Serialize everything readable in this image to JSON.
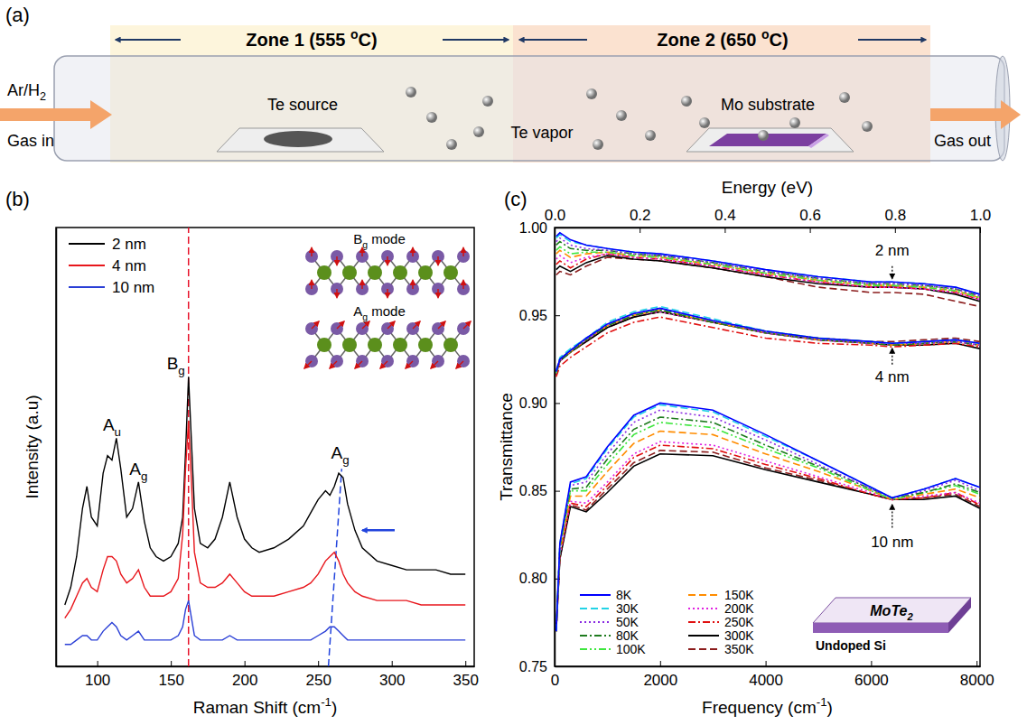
{
  "diagram": {
    "panel_label": "(a)",
    "zones": [
      {
        "label": [
          "Zone 1 (555 ",
          {
            "sup": "o"
          },
          "C)"
        ]
      },
      {
        "label": [
          "Zone 2 (650 ",
          {
            "sup": "o"
          },
          "C)"
        ]
      }
    ],
    "gas_in": [
      "Ar/H",
      {
        "sub": "2"
      }
    ],
    "gas_in_label": "Gas in",
    "source": "Te source",
    "vapor": "Te vapor",
    "substrate": "Mo substrate",
    "gas_out": "Gas out"
  },
  "chart_data": [
    {
      "type": "line",
      "panel_label": "(b)",
      "x_label": [
        "Raman Shift (cm",
        {
          "sup": "-1"
        },
        ")"
      ],
      "y_label": "Intensity (a.u)",
      "xlim": [
        72,
        356
      ],
      "xticks": [
        100,
        150,
        200,
        250,
        300,
        350
      ],
      "ylim": [
        0,
        100
      ],
      "tick_labels": "x",
      "grid": false,
      "legend": "upper left",
      "x": [
        78,
        82,
        86,
        90,
        93,
        96,
        100,
        104,
        107,
        110,
        113,
        116,
        120,
        124,
        128,
        132,
        136,
        140,
        145,
        150,
        155,
        158,
        160,
        162,
        164,
        166,
        170,
        175,
        180,
        185,
        190,
        195,
        200,
        205,
        210,
        220,
        230,
        240,
        245,
        250,
        255,
        258,
        261,
        264,
        267,
        270,
        275,
        280,
        290,
        300,
        310,
        320,
        330,
        340,
        350
      ],
      "series": [
        {
          "name": "2 nm",
          "color": "#000000",
          "values": [
            14,
            18,
            25,
            36,
            41,
            34,
            32,
            44,
            48,
            47,
            52,
            45,
            34,
            36,
            42,
            33,
            27,
            25,
            24,
            25,
            28,
            34,
            49,
            66,
            51,
            36,
            28,
            27,
            29,
            34,
            42,
            34,
            29,
            27,
            26,
            27,
            29,
            32,
            35,
            38,
            40,
            39,
            41,
            44,
            43,
            37,
            31,
            27,
            24,
            23,
            22,
            22,
            22,
            21,
            21
          ]
        },
        {
          "name": "4 nm",
          "color": "#e8161c",
          "values": [
            11,
            13,
            16,
            19,
            20,
            18,
            17,
            22,
            25,
            25,
            24,
            21,
            19,
            20,
            22,
            18,
            16,
            16,
            16,
            17,
            20,
            30,
            45,
            56,
            42,
            26,
            19,
            18,
            18,
            19,
            21,
            19,
            17,
            16,
            16,
            16,
            17,
            18,
            19,
            21,
            24,
            25,
            26,
            24,
            21,
            19,
            17,
            16,
            15,
            15,
            15,
            14,
            14,
            14,
            14
          ]
        },
        {
          "name": "10 nm",
          "color": "#2a3fd6",
          "values": [
            5,
            5,
            6,
            7,
            7,
            6,
            6,
            8,
            9,
            10,
            9,
            7,
            6,
            7,
            8,
            6,
            6,
            6,
            6,
            6,
            7,
            9,
            13,
            15,
            11,
            7,
            6,
            6,
            6,
            6,
            7,
            6,
            6,
            6,
            6,
            6,
            6,
            6,
            6,
            7,
            8,
            9,
            9,
            8,
            7,
            6,
            6,
            6,
            6,
            6,
            6,
            6,
            6,
            6,
            6
          ]
        }
      ],
      "peak_labels": [
        {
          "text": [
            "A",
            {
              "sub": "u"
            }
          ],
          "x": 110
        },
        {
          "text": [
            "A",
            {
              "sub": "g"
            }
          ],
          "x": 128
        },
        {
          "text": [
            "B",
            {
              "sub": "g"
            }
          ],
          "x": 162
        },
        {
          "text": [
            "A",
            {
              "sub": "g"
            }
          ],
          "x": 265
        }
      ],
      "reference_lines": [
        {
          "x": [
            162,
            162
          ],
          "y": [
            0,
            100
          ],
          "color": "#e8132b",
          "line_style": "dashed"
        },
        {
          "x": [
            257,
            266
          ],
          "y": [
            0,
            45
          ],
          "color": "#2244dd",
          "line_style": "dashed"
        }
      ],
      "arrow": {
        "x": [
          302,
          280
        ],
        "y": [
          31,
          31
        ],
        "color": "#2244dd"
      },
      "insets": [
        [
          "B",
          {
            "sub": "g"
          },
          " mode"
        ],
        [
          "A",
          {
            "sub": "g"
          },
          " mode"
        ]
      ]
    },
    {
      "type": "line",
      "panel_label": "(c)",
      "x_label": [
        "Frequency (cm",
        {
          "sup": "-1"
        },
        ")"
      ],
      "x2_label": "Energy (eV)",
      "y_label": "Transmittance",
      "xlim": [
        0,
        8065
      ],
      "xticks": [
        0,
        2000,
        4000,
        6000,
        8000
      ],
      "x2lim": [
        0,
        1
      ],
      "x2ticks": [
        {
          "value": 0,
          "label": "0.0"
        },
        0.2,
        0.4,
        0.6,
        0.8,
        {
          "value": 1,
          "label": "1.0"
        }
      ],
      "ylim": [
        0.75,
        1
      ],
      "yticks": [
        0.75,
        {
          "value": 0.8,
          "label": "0.80"
        },
        0.85,
        {
          "value": 0.9,
          "label": "0.90"
        },
        0.95,
        {
          "value": 1,
          "label": "1.00"
        }
      ],
      "grid": false,
      "legend": "lower left",
      "x": [
        30,
        100,
        300,
        600,
        1000,
        1500,
        2000,
        3000,
        4000,
        5000,
        6000,
        6400,
        7000,
        7600,
        8060
      ],
      "series": [
        {
          "name": "8K",
          "color": "#0000ff",
          "line_style": "solid",
          "values": [
            [
              0.995,
              0.997,
              0.993,
              0.99,
              0.988,
              0.986,
              0.985,
              0.981,
              0.976,
              0.972,
              0.969,
              0.969,
              0.968,
              0.966,
              0.962
            ],
            [
              0.918,
              0.925,
              0.93,
              0.937,
              0.945,
              0.951,
              0.954,
              0.947,
              0.941,
              0.937,
              0.935,
              0.934,
              0.935,
              0.936,
              0.934
            ],
            [
              0.77,
              0.82,
              0.855,
              0.858,
              0.875,
              0.893,
              0.9,
              0.896,
              0.882,
              0.867,
              0.852,
              0.846,
              0.851,
              0.857,
              0.852
            ]
          ]
        },
        {
          "name": "30K",
          "color": "#22d3e6",
          "line_style": "dashed",
          "values": [
            [
              0.994,
              0.996,
              0.992,
              0.99,
              0.988,
              0.986,
              0.985,
              0.981,
              0.976,
              0.972,
              0.969,
              0.969,
              0.968,
              0.966,
              0.962
            ],
            [
              0.918,
              0.926,
              0.931,
              0.937,
              0.946,
              0.952,
              0.955,
              0.948,
              0.941,
              0.937,
              0.935,
              0.934,
              0.935,
              0.936,
              0.934
            ],
            [
              0.77,
              0.82,
              0.854,
              0.857,
              0.874,
              0.892,
              0.899,
              0.895,
              0.881,
              0.867,
              0.852,
              0.846,
              0.851,
              0.857,
              0.852
            ]
          ]
        },
        {
          "name": "50K",
          "color": "#8a2be2",
          "line_style": "dotted",
          "values": [
            [
              0.992,
              0.994,
              0.99,
              0.988,
              0.987,
              0.985,
              0.984,
              0.98,
              0.975,
              0.971,
              0.968,
              0.968,
              0.967,
              0.965,
              0.961
            ],
            [
              0.919,
              0.925,
              0.93,
              0.936,
              0.945,
              0.951,
              0.954,
              0.947,
              0.94,
              0.936,
              0.934,
              0.934,
              0.934,
              0.935,
              0.933
            ],
            [
              0.77,
              0.819,
              0.853,
              0.855,
              0.871,
              0.889,
              0.896,
              0.892,
              0.879,
              0.865,
              0.851,
              0.846,
              0.85,
              0.856,
              0.85
            ]
          ]
        },
        {
          "name": "80K",
          "color": "#1e7b1e",
          "line_style": "dashdot",
          "values": [
            [
              0.99,
              0.992,
              0.988,
              0.987,
              0.987,
              0.985,
              0.984,
              0.98,
              0.975,
              0.971,
              0.968,
              0.968,
              0.967,
              0.965,
              0.961
            ],
            [
              0.918,
              0.924,
              0.929,
              0.936,
              0.944,
              0.95,
              0.953,
              0.946,
              0.94,
              0.936,
              0.934,
              0.933,
              0.934,
              0.935,
              0.933
            ],
            [
              0.77,
              0.818,
              0.851,
              0.852,
              0.868,
              0.885,
              0.892,
              0.889,
              0.876,
              0.864,
              0.851,
              0.846,
              0.849,
              0.854,
              0.849
            ]
          ]
        },
        {
          "name": "100K",
          "color": "#3ee63e",
          "line_style": "dashdotdot",
          "values": [
            [
              0.987,
              0.989,
              0.985,
              0.986,
              0.986,
              0.984,
              0.983,
              0.979,
              0.974,
              0.97,
              0.967,
              0.967,
              0.966,
              0.964,
              0.96
            ],
            [
              0.917,
              0.925,
              0.93,
              0.937,
              0.945,
              0.951,
              0.953,
              0.947,
              0.941,
              0.937,
              0.935,
              0.934,
              0.935,
              0.936,
              0.934
            ],
            [
              0.77,
              0.817,
              0.85,
              0.85,
              0.865,
              0.882,
              0.889,
              0.886,
              0.874,
              0.863,
              0.85,
              0.845,
              0.849,
              0.853,
              0.848
            ]
          ]
        },
        {
          "name": "150K",
          "color": "#ff8c00",
          "line_style": "dashed",
          "values": [
            [
              0.985,
              0.987,
              0.983,
              0.985,
              0.986,
              0.984,
              0.983,
              0.979,
              0.974,
              0.97,
              0.967,
              0.967,
              0.966,
              0.964,
              0.96
            ],
            [
              0.918,
              0.925,
              0.929,
              0.936,
              0.944,
              0.95,
              0.953,
              0.946,
              0.94,
              0.936,
              0.934,
              0.933,
              0.934,
              0.935,
              0.933
            ],
            [
              0.77,
              0.815,
              0.847,
              0.847,
              0.861,
              0.877,
              0.884,
              0.882,
              0.871,
              0.861,
              0.85,
              0.845,
              0.848,
              0.851,
              0.846
            ]
          ]
        },
        {
          "name": "200K",
          "color": "#e020e0",
          "line_style": "dotted",
          "values": [
            [
              0.982,
              0.984,
              0.98,
              0.983,
              0.985,
              0.983,
              0.982,
              0.978,
              0.973,
              0.969,
              0.966,
              0.966,
              0.965,
              0.963,
              0.959
            ],
            [
              0.917,
              0.924,
              0.929,
              0.936,
              0.944,
              0.95,
              0.952,
              0.946,
              0.94,
              0.936,
              0.934,
              0.933,
              0.934,
              0.935,
              0.933
            ],
            [
              0.77,
              0.813,
              0.844,
              0.843,
              0.855,
              0.871,
              0.878,
              0.876,
              0.867,
              0.858,
              0.849,
              0.845,
              0.847,
              0.849,
              0.843
            ]
          ]
        },
        {
          "name": "250K",
          "color": "#e01010",
          "line_style": "dashdot",
          "values": [
            [
              0.979,
              0.981,
              0.977,
              0.982,
              0.985,
              0.983,
              0.982,
              0.978,
              0.973,
              0.969,
              0.966,
              0.966,
              0.965,
              0.963,
              0.959
            ],
            [
              0.915,
              0.921,
              0.926,
              0.932,
              0.94,
              0.946,
              0.949,
              0.943,
              0.937,
              0.934,
              0.933,
              0.932,
              0.933,
              0.934,
              0.932
            ],
            [
              0.77,
              0.813,
              0.843,
              0.841,
              0.853,
              0.869,
              0.876,
              0.874,
              0.865,
              0.857,
              0.848,
              0.845,
              0.846,
              0.849,
              0.842
            ]
          ]
        },
        {
          "name": "300K",
          "color": "#000000",
          "line_style": "solid",
          "values": [
            [
              0.976,
              0.978,
              0.975,
              0.98,
              0.984,
              0.982,
              0.981,
              0.977,
              0.972,
              0.968,
              0.966,
              0.966,
              0.965,
              0.962,
              0.958
            ],
            [
              0.917,
              0.924,
              0.929,
              0.935,
              0.943,
              0.949,
              0.952,
              0.946,
              0.94,
              0.936,
              0.934,
              0.933,
              0.933,
              0.934,
              0.931
            ],
            [
              0.77,
              0.811,
              0.841,
              0.838,
              0.849,
              0.864,
              0.871,
              0.87,
              0.862,
              0.855,
              0.848,
              0.845,
              0.845,
              0.847,
              0.84
            ]
          ]
        },
        {
          "name": "350K",
          "color": "#8b1c1c",
          "line_style": "dashed",
          "values": [
            [
              0.973,
              0.975,
              0.973,
              0.978,
              0.983,
              0.982,
              0.981,
              0.977,
              0.972,
              0.966,
              0.963,
              0.963,
              0.962,
              0.958,
              0.955
            ],
            [
              0.916,
              0.924,
              0.929,
              0.935,
              0.943,
              0.949,
              0.952,
              0.946,
              0.94,
              0.937,
              0.935,
              0.935,
              0.936,
              0.937,
              0.935
            ],
            [
              0.77,
              0.812,
              0.842,
              0.839,
              0.851,
              0.866,
              0.873,
              0.872,
              0.863,
              0.856,
              0.848,
              0.845,
              0.846,
              0.848,
              0.841
            ]
          ]
        }
      ],
      "annotations": [
        {
          "text": "2 nm",
          "x": 6400,
          "y": 0.984,
          "arrow_from": 0.978,
          "arrow_to": 0.971
        },
        {
          "text": "4 nm",
          "x": 6400,
          "y": 0.912,
          "arrow_from": 0.922,
          "arrow_to": 0.931
        },
        {
          "text": "10 nm",
          "x": 6400,
          "y": 0.818,
          "arrow_from": 0.829,
          "arrow_to": 0.842
        }
      ],
      "inset": {
        "film": [
          "MoTe",
          {
            "sub": "2"
          }
        ],
        "substrate": "Undoped Si"
      }
    }
  ]
}
